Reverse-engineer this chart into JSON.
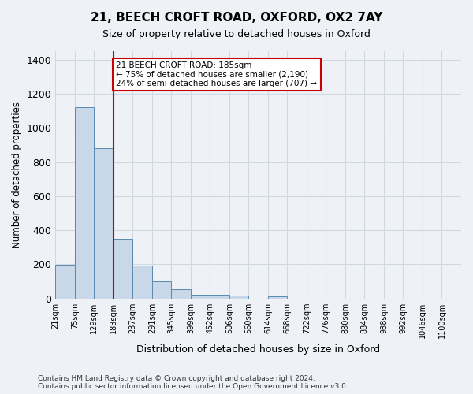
{
  "title_line1": "21, BEECH CROFT ROAD, OXFORD, OX2 7AY",
  "title_line2": "Size of property relative to detached houses in Oxford",
  "xlabel": "Distribution of detached houses by size in Oxford",
  "ylabel": "Number of detached properties",
  "footnote": "Contains HM Land Registry data © Crown copyright and database right 2024.\nContains public sector information licensed under the Open Government Licence v3.0.",
  "bin_labels": [
    "21sqm",
    "75sqm",
    "129sqm",
    "183sqm",
    "237sqm",
    "291sqm",
    "345sqm",
    "399sqm",
    "452sqm",
    "506sqm",
    "560sqm",
    "614sqm",
    "668sqm",
    "722sqm",
    "776sqm",
    "830sqm",
    "884sqm",
    "938sqm",
    "992sqm",
    "1046sqm",
    "1100sqm"
  ],
  "bar_values": [
    197,
    1120,
    880,
    350,
    193,
    100,
    52,
    22,
    20,
    15,
    0,
    14,
    0,
    0,
    0,
    0,
    0,
    0,
    0,
    0,
    0
  ],
  "bar_color": "#c8d8e8",
  "bar_edge_color": "#5a8ab0",
  "grid_color": "#d0d8e0",
  "background_color": "#eef2f7",
  "property_line_x": 3.0,
  "annotation_text": "21 BEECH CROFT ROAD: 185sqm\n← 75% of detached houses are smaller (2,190)\n24% of semi-detached houses are larger (707) →",
  "annotation_box_color": "#ffffff",
  "annotation_border_color": "#cc0000",
  "vline_color": "#cc0000",
  "ylim": [
    0,
    1450
  ],
  "yticks": [
    0,
    200,
    400,
    600,
    800,
    1000,
    1200,
    1400
  ]
}
